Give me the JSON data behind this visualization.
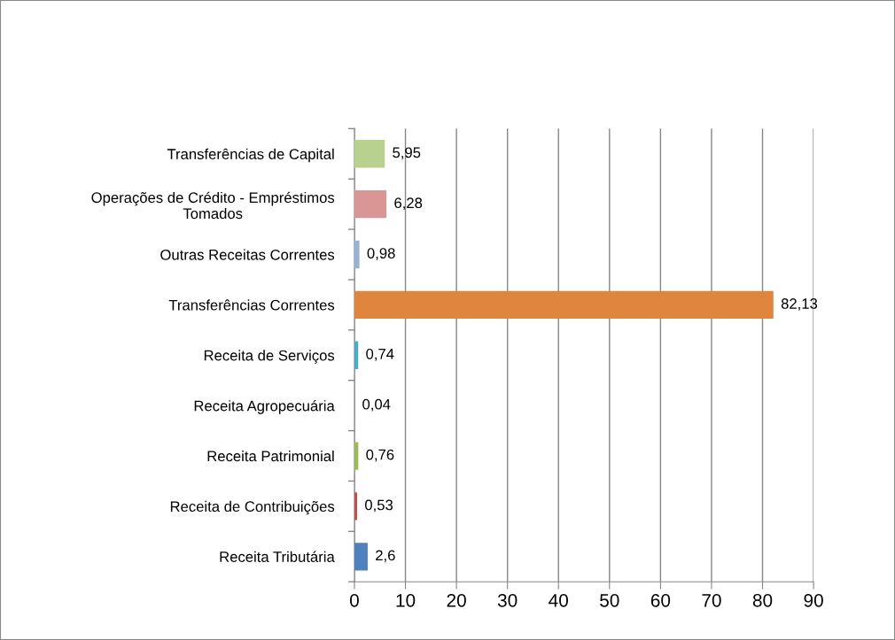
{
  "chart_data": {
    "type": "bar",
    "orientation": "horizontal",
    "categories": [
      "Transferências de Capital",
      "Operações de Crédito - Empréstimos\nTomados",
      "Outras Receitas Correntes",
      "Transferências Correntes",
      "Receita de Serviços",
      "Receita Agropecuária",
      "Receita Patrimonial",
      "Receita de Contribuições",
      "Receita Tributária"
    ],
    "values": [
      5.95,
      6.28,
      0.98,
      82.13,
      0.74,
      0.04,
      0.76,
      0.53,
      2.6
    ],
    "colors": [
      "#b9d18f",
      "#d99694",
      "#95b3d7",
      "#e0853e",
      "#4bacc6",
      "#8064a2",
      "#9bbb59",
      "#c0504d",
      "#4f81bd"
    ],
    "value_labels": [
      "5,95",
      "6,28",
      "0,98",
      "82,13",
      "0,74",
      "0,04",
      "0,76",
      "0,53",
      "2,6"
    ],
    "xlim": [
      0,
      90
    ],
    "xticks": [
      0,
      10,
      20,
      30,
      40,
      50,
      60,
      70,
      80,
      90
    ],
    "grid": "x",
    "legend": false
  }
}
